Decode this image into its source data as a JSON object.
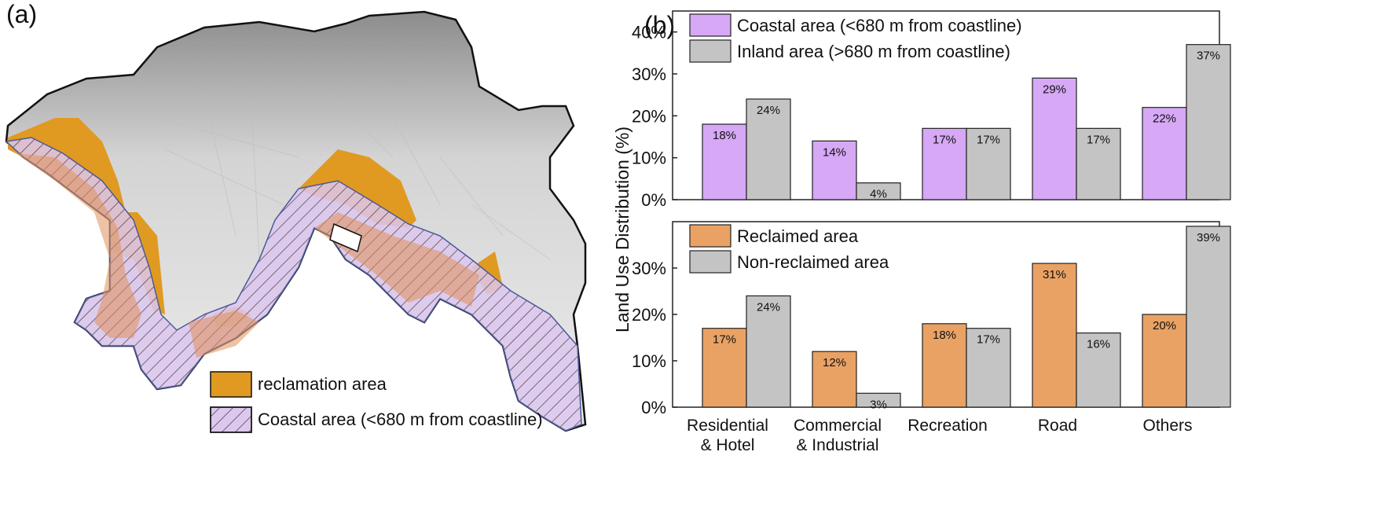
{
  "panel_a": {
    "label": "(a)",
    "legend": [
      {
        "label": "reclamation area",
        "color": "#e09a22"
      },
      {
        "label": "Coastal area (<680 m from coastline)",
        "color": "#dcc7ee"
      }
    ]
  },
  "panel_b": {
    "label": "(b)"
  },
  "chart_data": [
    {
      "type": "bar",
      "categories": [
        "Residential\n& Hotel",
        "Commercial\n& Industrial",
        "Recreation",
        "Road",
        "Others"
      ],
      "series": [
        {
          "name": "Coastal area (<680 m from coastline)",
          "values": [
            18,
            14,
            17,
            29,
            22
          ],
          "labels": [
            "18%",
            "14%",
            "17%",
            "29%",
            "22%"
          ],
          "color": "#d6a8f5"
        },
        {
          "name": "Inland area (>680 m from coastline)",
          "values": [
            24,
            4,
            17,
            17,
            37
          ],
          "labels": [
            "24%",
            "4%",
            "17%",
            "17%",
            "37%"
          ],
          "color": "#c4c4c4"
        }
      ],
      "ylim": [
        0,
        45
      ],
      "yticks": [
        0,
        10,
        20,
        30,
        40
      ],
      "ytick_labels": [
        "0%",
        "10%",
        "20%",
        "30%",
        "40%"
      ],
      "legend_position": "top-left",
      "grid": false
    },
    {
      "type": "bar",
      "categories": [
        "Residential\n& Hotel",
        "Commercial\n& Industrial",
        "Recreation",
        "Road",
        "Others"
      ],
      "series": [
        {
          "name": "Reclaimed area",
          "values": [
            17,
            12,
            18,
            31,
            20
          ],
          "labels": [
            "17%",
            "12%",
            "18%",
            "31%",
            "20%"
          ],
          "color": "#e9a264"
        },
        {
          "name": "Non-reclaimed area",
          "values": [
            24,
            3,
            17,
            16,
            39
          ],
          "labels": [
            "24%",
            "3%",
            "17%",
            "16%",
            "39%"
          ],
          "color": "#c4c4c4"
        }
      ],
      "ylim": [
        0,
        40
      ],
      "yticks": [
        0,
        10,
        20,
        30
      ],
      "ytick_labels": [
        "0%",
        "10%",
        "20%",
        "30%"
      ],
      "legend_position": "top-left",
      "grid": false
    }
  ],
  "shared_axes": {
    "ylabel": "Land Use Distribution (%)",
    "xtick_labels": [
      [
        "Residential",
        "& Hotel"
      ],
      [
        "Commercial",
        "& Industrial"
      ],
      [
        "Recreation"
      ],
      [
        "Road"
      ],
      [
        "Others"
      ]
    ]
  }
}
